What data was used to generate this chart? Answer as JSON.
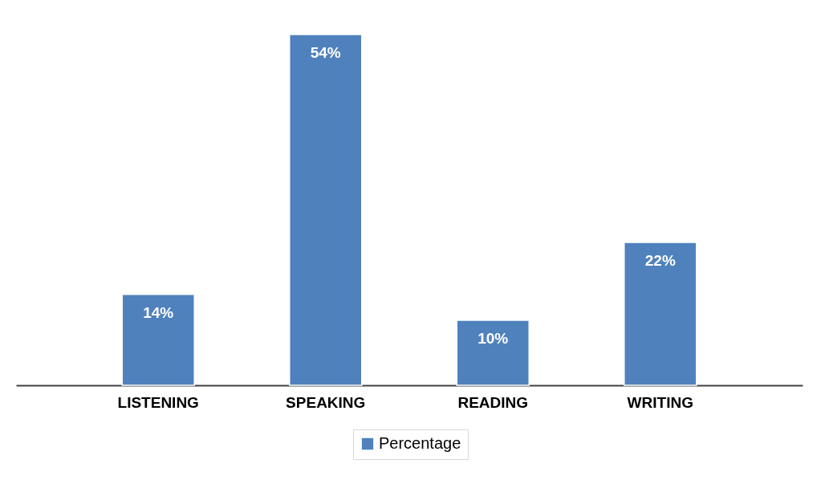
{
  "chart_data": {
    "type": "bar",
    "categories": [
      "LISTENING",
      "SPEAKING",
      "READING",
      "WRITING"
    ],
    "series": [
      {
        "name": "Percentage",
        "color": "#4f81bd",
        "values": [
          14,
          54,
          10,
          22
        ],
        "value_labels": [
          "14%",
          "54%",
          "10%",
          "22%"
        ]
      }
    ],
    "legend": "bottom"
  }
}
